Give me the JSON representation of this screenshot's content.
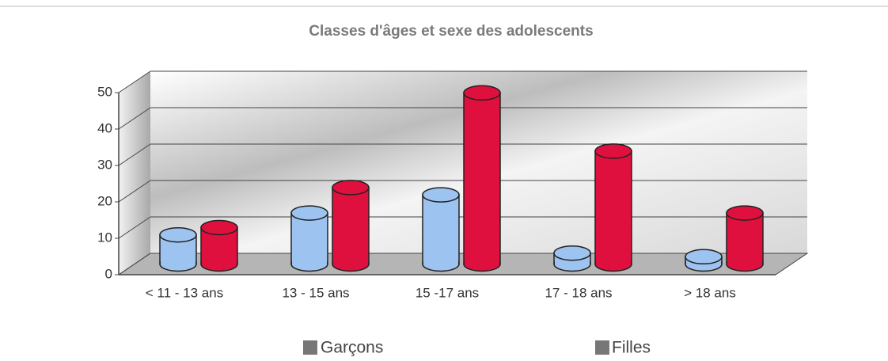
{
  "chart_data": {
    "type": "bar",
    "title": "Classes d'âges et sexe des adolescents",
    "categories": [
      "< 11 - 13 ans",
      "13 - 15 ans",
      "15 -17 ans",
      "17 - 18 ans",
      "> 18 ans"
    ],
    "series": [
      {
        "name": "Garçons",
        "color": "#9dc3f0",
        "values": [
          8,
          14,
          19,
          3,
          2
        ]
      },
      {
        "name": "Filles",
        "color": "#e0103e",
        "values": [
          10,
          21,
          47,
          31,
          14
        ]
      }
    ],
    "ylim": [
      0,
      50
    ],
    "yticks": [
      0,
      10,
      20,
      30,
      40,
      50
    ],
    "grid": true
  }
}
